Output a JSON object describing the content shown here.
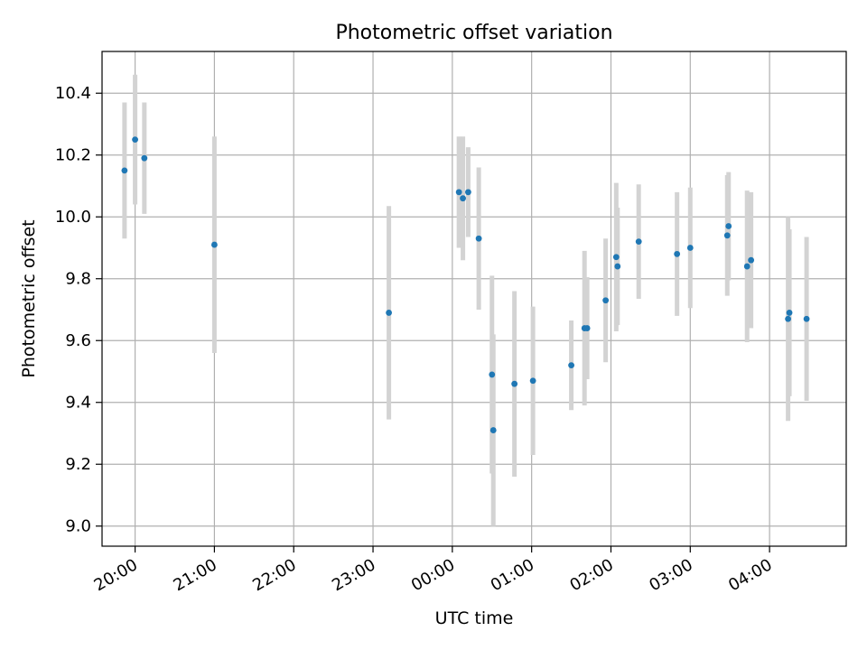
{
  "chart_data": {
    "type": "scatter",
    "title": "Photometric offset variation",
    "xlabel": "UTC time",
    "ylabel": "Photometric offset",
    "x_is_time": true,
    "xlim": [
      "19:35",
      "04:58"
    ],
    "ylim": [
      8.935,
      10.535
    ],
    "yticks": [
      9.0,
      9.2,
      9.4,
      9.6,
      9.8,
      10.0,
      10.2,
      10.4
    ],
    "ytick_labels": [
      "9.0",
      "9.2",
      "9.4",
      "9.6",
      "9.8",
      "10.0",
      "10.2",
      "10.4"
    ],
    "xticks": [
      "20:00",
      "21:00",
      "22:00",
      "23:00",
      "00:00",
      "01:00",
      "02:00",
      "03:00",
      "04:00"
    ],
    "xtick_labels": [
      "20:00",
      "21:00",
      "22:00",
      "23:00",
      "00:00",
      "01:00",
      "02:00",
      "03:00",
      "04:00"
    ],
    "grid": true,
    "marker_color": "#1f77b4",
    "errorbar_color": "#d3d3d3",
    "points": [
      {
        "t": "19:52",
        "y": 10.15,
        "err": 0.22
      },
      {
        "t": "20:00",
        "y": 10.25,
        "err": 0.21
      },
      {
        "t": "20:07",
        "y": 10.19,
        "err": 0.18
      },
      {
        "t": "21:00",
        "y": 9.91,
        "err": 0.35
      },
      {
        "t": "23:12",
        "y": 9.69,
        "err": 0.345
      },
      {
        "t": "00:05",
        "y": 10.08,
        "err": 0.18
      },
      {
        "t": "00:08",
        "y": 10.06,
        "err": 0.2
      },
      {
        "t": "00:12",
        "y": 10.08,
        "err": 0.145
      },
      {
        "t": "00:20",
        "y": 9.93,
        "err": 0.23
      },
      {
        "t": "00:30",
        "y": 9.49,
        "err": 0.32
      },
      {
        "t": "00:31",
        "y": 9.31,
        "err": 0.31
      },
      {
        "t": "00:47",
        "y": 9.46,
        "err": 0.3
      },
      {
        "t": "01:01",
        "y": 9.47,
        "err": 0.24
      },
      {
        "t": "01:30",
        "y": 9.52,
        "err": 0.145
      },
      {
        "t": "01:40",
        "y": 9.64,
        "err": 0.25
      },
      {
        "t": "01:42",
        "y": 9.64,
        "err": 0.165
      },
      {
        "t": "01:56",
        "y": 9.73,
        "err": 0.2
      },
      {
        "t": "02:04",
        "y": 9.87,
        "err": 0.24
      },
      {
        "t": "02:05",
        "y": 9.84,
        "err": 0.19
      },
      {
        "t": "02:21",
        "y": 9.92,
        "err": 0.185
      },
      {
        "t": "02:50",
        "y": 9.88,
        "err": 0.2
      },
      {
        "t": "03:00",
        "y": 9.9,
        "err": 0.195
      },
      {
        "t": "03:28",
        "y": 9.94,
        "err": 0.195
      },
      {
        "t": "03:29",
        "y": 9.97,
        "err": 0.175
      },
      {
        "t": "03:43",
        "y": 9.84,
        "err": 0.245
      },
      {
        "t": "03:46",
        "y": 9.86,
        "err": 0.22
      },
      {
        "t": "04:14",
        "y": 9.67,
        "err": 0.33
      },
      {
        "t": "04:15",
        "y": 9.69,
        "err": 0.27
      },
      {
        "t": "04:28",
        "y": 9.67,
        "err": 0.265
      }
    ]
  }
}
